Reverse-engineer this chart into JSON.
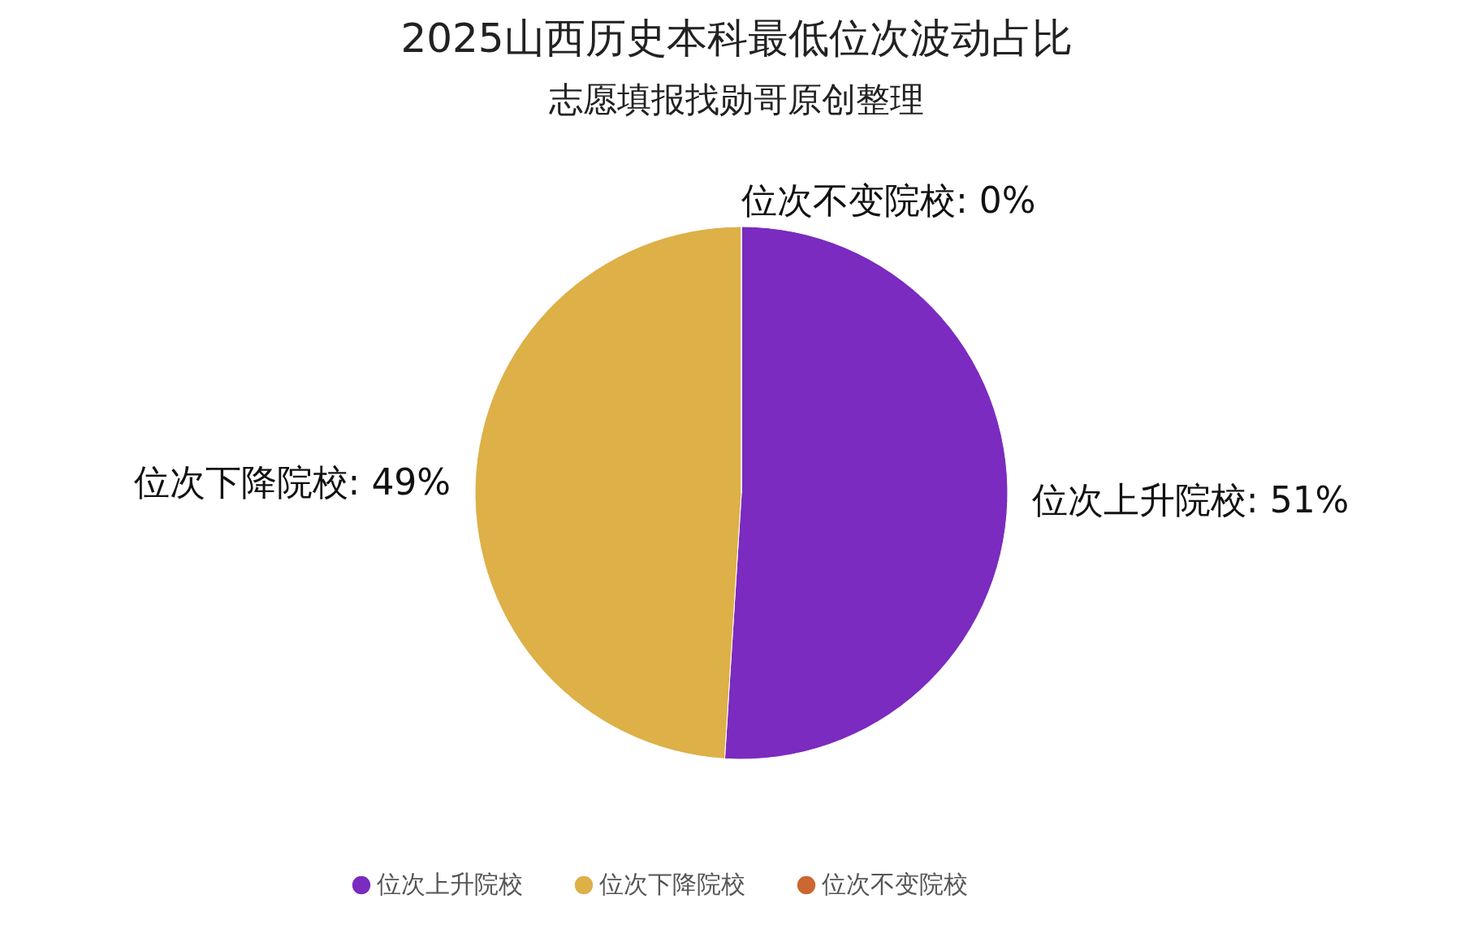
{
  "chart_data": {
    "type": "pie",
    "title": "2025山西历史本科最低位次波动占比",
    "subtitle": "志愿填报找勋哥原创整理",
    "categories": [
      "位次上升院校",
      "位次下降院校",
      "位次不变院校"
    ],
    "values": [
      51,
      49,
      0
    ],
    "value_labels": [
      "位次上升院校: 51%",
      "位次下降院校: 49%",
      "位次不变院校: 0%"
    ],
    "colors": [
      "#7b2bbf",
      "#ddb048",
      "#cc6633"
    ],
    "legend": "bottom"
  }
}
